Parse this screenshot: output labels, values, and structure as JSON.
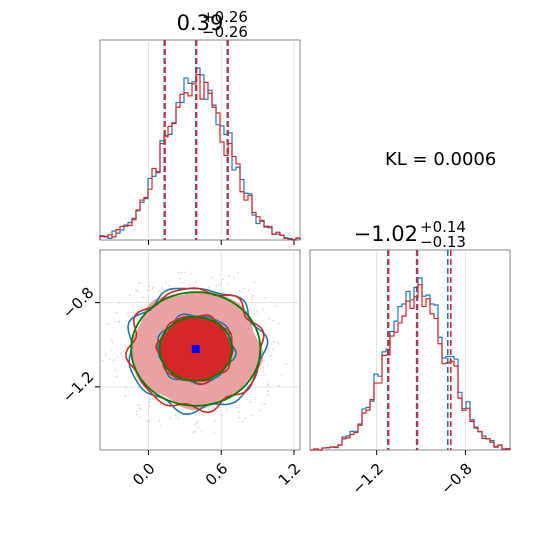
{
  "chart_data": {
    "type": "corner",
    "params": [
      {
        "title_value": "0.39",
        "title_plus": "+0.26",
        "title_minus": "−0.26",
        "xlim": [
          -0.4,
          1.25
        ],
        "ticks": [
          0.0,
          0.6,
          1.2
        ],
        "tick_labels": [
          "0.0",
          "0.6",
          "1.2"
        ],
        "quantiles_blue": [
          0.13,
          0.39,
          0.65
        ],
        "quantiles_red": [
          0.13,
          0.39,
          0.65
        ]
      },
      {
        "title_value": "−1.02",
        "title_plus": "+0.14",
        "title_minus": "−0.13",
        "xlim": [
          -1.5,
          -0.6
        ],
        "ticks": [
          -1.2,
          -0.8
        ],
        "tick_labels": [
          "−1.2",
          "−0.8"
        ],
        "quantiles_blue": [
          -1.15,
          -1.02,
          -0.88
        ],
        "quantiles_red": [
          -1.15,
          -1.02,
          -0.87
        ]
      }
    ],
    "y_ticks_2d": [
      -0.8,
      -1.2
    ],
    "y_tick_labels_2d": [
      "−0.8",
      "−1.2"
    ],
    "annotation": "KL = 0.0006",
    "truth_point": {
      "x": 0.39,
      "y": -1.02
    },
    "series": [
      {
        "color": "#1f77b4"
      },
      {
        "color": "#d62728"
      },
      {
        "color": "#008000"
      }
    ],
    "colors": {
      "blue": "#1f77b4",
      "red": "#d62728",
      "green": "#008000",
      "fill_light": "#eaa1a1",
      "fill_dark": "#d62728",
      "truth": "#0000ff"
    },
    "grid": true
  }
}
